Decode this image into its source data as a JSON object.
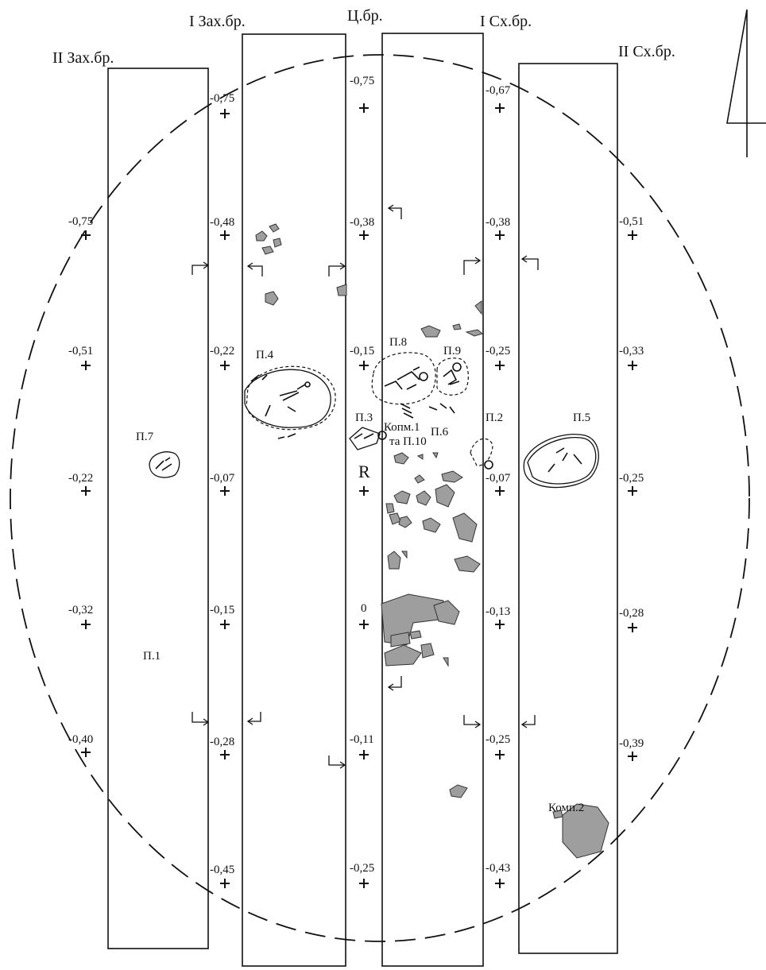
{
  "strips": [
    {
      "id": "zah2",
      "label": "II Зах.бр."
    },
    {
      "id": "zah1",
      "label": "I Зах.бр."
    },
    {
      "id": "center",
      "label": "Ц.бр."
    },
    {
      "id": "sh1",
      "label": "I Сх.бр."
    },
    {
      "id": "sh2",
      "label": "II Сх.бр."
    }
  ],
  "depth_marks": {
    "col_zah2": [
      "-0,75",
      "-0,51",
      "-0,22",
      "-0,32",
      "-0,40"
    ],
    "col_zah1": [
      "-0,75",
      "-0,48",
      "-0,22",
      "-0,07",
      "-0,15",
      "-0,28",
      "-0,45"
    ],
    "col_center": [
      "-0,75",
      "-0,38",
      "-0,15",
      "0",
      "-0,11",
      "-0,25"
    ],
    "col_sh1": [
      "-0,67",
      "-0,38",
      "-0,25",
      "-0,07",
      "-0,13",
      "-0,25",
      "-0,43"
    ],
    "col_sh2": [
      "-0,51",
      "-0,33",
      "-0,25",
      "-0,28",
      "-0,39"
    ]
  },
  "features": {
    "p1": "П.1",
    "p2": "П.2",
    "p3": "П.3",
    "p4": "П.4",
    "p5": "П.5",
    "p6": "П.6",
    "p7": "П.7",
    "p8": "П.8",
    "p9": "П.9",
    "comp1_line1": "Копм.1",
    "comp1_line2": "та П.10",
    "comp2": "Комп.2"
  },
  "center_marker": "R"
}
